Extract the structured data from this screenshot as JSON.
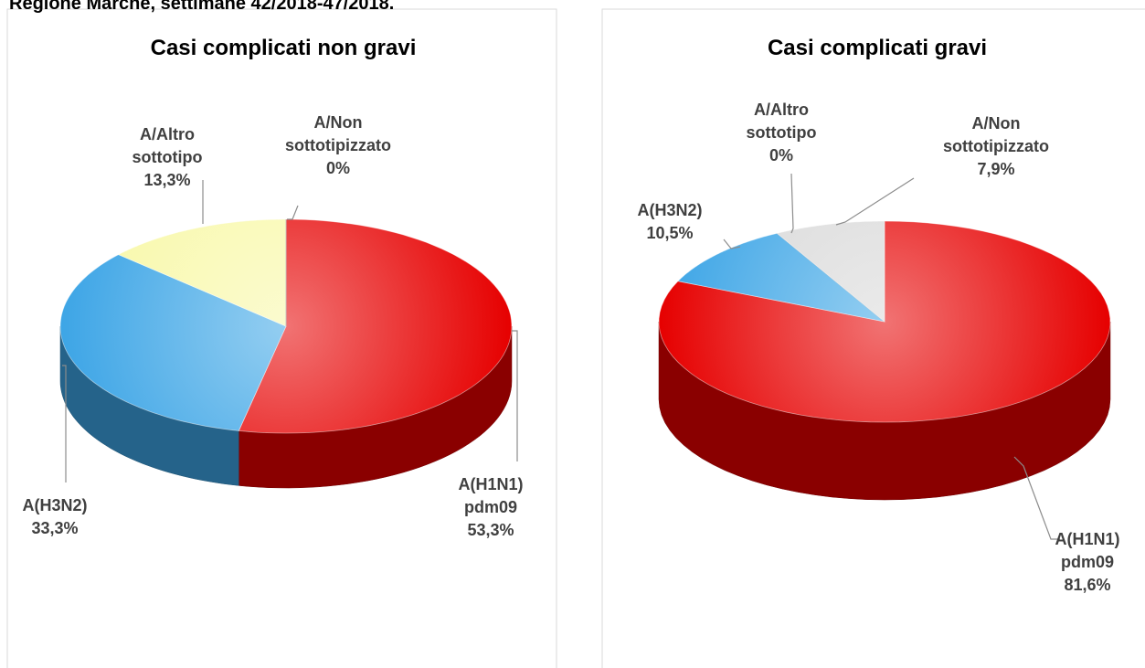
{
  "header": {
    "title": "Regione Marche, settimane 42/2018-47/2018."
  },
  "chart_data": [
    {
      "type": "pie",
      "title": "Casi complicati non gravi",
      "categories": [
        "A(H1N1) pdm09",
        "A(H3N2)",
        "A/Altro sottotipo",
        "A/Non sottotipizzato"
      ],
      "values": [
        53.3,
        33.3,
        13.3,
        0
      ],
      "value_labels": [
        "53,3%",
        "33,3%",
        "13,3%",
        "0%"
      ],
      "colors": [
        "#e60000",
        "#3da5e6",
        "#f8f8a8",
        "#d9d9d9"
      ]
    },
    {
      "type": "pie",
      "title": "Casi complicati gravi",
      "categories": [
        "A(H1N1) pdm09",
        "A(H3N2)",
        "A/Altro sottotipo",
        "A/Non sottotipizzato"
      ],
      "values": [
        81.6,
        10.5,
        0,
        7.9
      ],
      "value_labels": [
        "81,6%",
        "10,5%",
        "0%",
        "7,9%"
      ],
      "colors": [
        "#e60000",
        "#3da5e6",
        "#f8f8a8",
        "#d9d9d9"
      ]
    }
  ]
}
